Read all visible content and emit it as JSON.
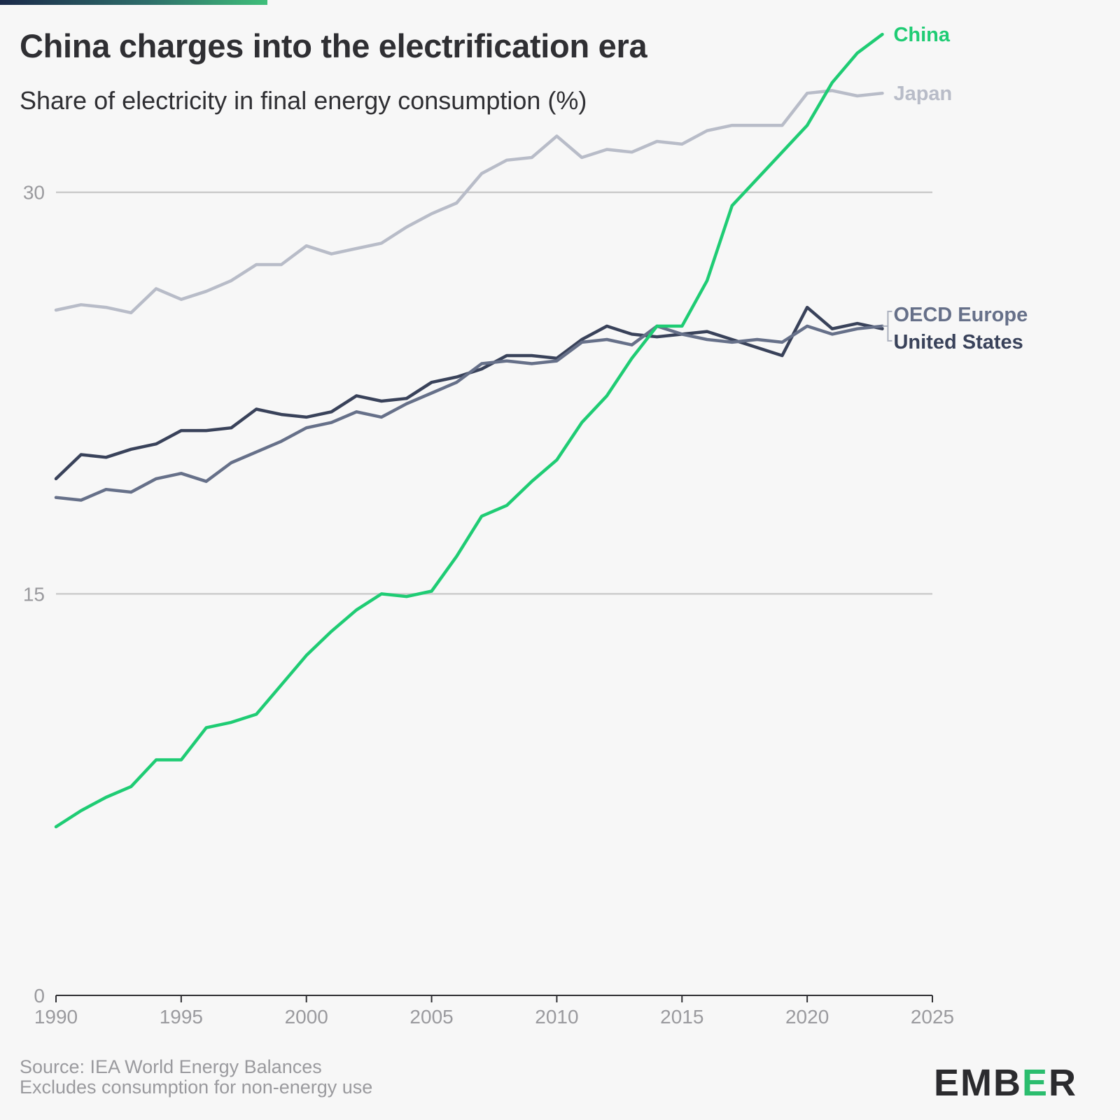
{
  "header": {
    "title": "China charges into the electrification era",
    "subtitle": "Share of electricity in final energy consumption (%)"
  },
  "footer": {
    "source": "Source: IEA World Energy Balances",
    "note": "Excludes consumption for non-energy use"
  },
  "logo": {
    "pre": "EMB",
    "accent": "E",
    "post": "R"
  },
  "colors": {
    "japan": "#b8bcc8",
    "china": "#1fcc74",
    "oecd_europe": "#667089",
    "united_states": "#39425a",
    "grid": "#cccccc",
    "axis_text": "#9a9a9e"
  },
  "chart_data": {
    "type": "line",
    "x": [
      1990,
      1991,
      1992,
      1993,
      1994,
      1995,
      1996,
      1997,
      1998,
      1999,
      2000,
      2001,
      2002,
      2003,
      2004,
      2005,
      2006,
      2007,
      2008,
      2009,
      2010,
      2011,
      2012,
      2013,
      2014,
      2015,
      2016,
      2017,
      2018,
      2019,
      2020,
      2021,
      2022,
      2023
    ],
    "xlim": [
      1990,
      2025
    ],
    "ylim": [
      0,
      37
    ],
    "xticks": [
      1990,
      1995,
      2000,
      2005,
      2010,
      2015,
      2020,
      2025
    ],
    "yticks": [
      0,
      15,
      30
    ],
    "grid": true,
    "legend": "direct labels at line ends",
    "series": [
      {
        "name": "Japan",
        "key": "japan",
        "values": [
          25.6,
          25.8,
          25.7,
          25.5,
          26.4,
          26.0,
          26.3,
          26.7,
          27.3,
          27.3,
          28.0,
          27.7,
          27.9,
          28.1,
          28.7,
          29.2,
          29.6,
          30.7,
          31.2,
          31.3,
          32.1,
          31.3,
          31.6,
          31.5,
          31.9,
          31.8,
          32.3,
          32.5,
          32.5,
          32.5,
          33.7,
          33.8,
          33.6,
          33.7
        ]
      },
      {
        "name": "China",
        "key": "china",
        "values": [
          6.3,
          6.9,
          7.4,
          7.8,
          8.8,
          8.8,
          10.0,
          10.2,
          10.5,
          11.6,
          12.7,
          13.6,
          14.4,
          15.0,
          14.9,
          15.1,
          16.4,
          17.9,
          18.3,
          19.2,
          20.0,
          21.4,
          22.4,
          23.8,
          25.0,
          25.0,
          26.7,
          29.5,
          30.5,
          31.5,
          32.5,
          34.1,
          35.2,
          35.9
        ]
      },
      {
        "name": "OECD Europe",
        "key": "oecd_europe",
        "values": [
          18.6,
          18.5,
          18.9,
          18.8,
          19.3,
          19.5,
          19.2,
          19.9,
          20.3,
          20.7,
          21.2,
          21.4,
          21.8,
          21.6,
          22.1,
          22.5,
          22.9,
          23.6,
          23.7,
          23.6,
          23.7,
          24.4,
          24.5,
          24.3,
          25.0,
          24.7,
          24.5,
          24.4,
          24.5,
          24.4,
          25.0,
          24.7,
          24.9,
          25.0
        ]
      },
      {
        "name": "United States",
        "key": "united_states",
        "values": [
          19.3,
          20.2,
          20.1,
          20.4,
          20.6,
          21.1,
          21.1,
          21.2,
          21.9,
          21.7,
          21.6,
          21.8,
          22.4,
          22.2,
          22.3,
          22.9,
          23.1,
          23.4,
          23.9,
          23.9,
          23.8,
          24.5,
          25.0,
          24.7,
          24.6,
          24.7,
          24.8,
          24.5,
          24.2,
          23.9,
          25.7,
          24.9,
          25.1,
          24.9
        ]
      }
    ]
  }
}
